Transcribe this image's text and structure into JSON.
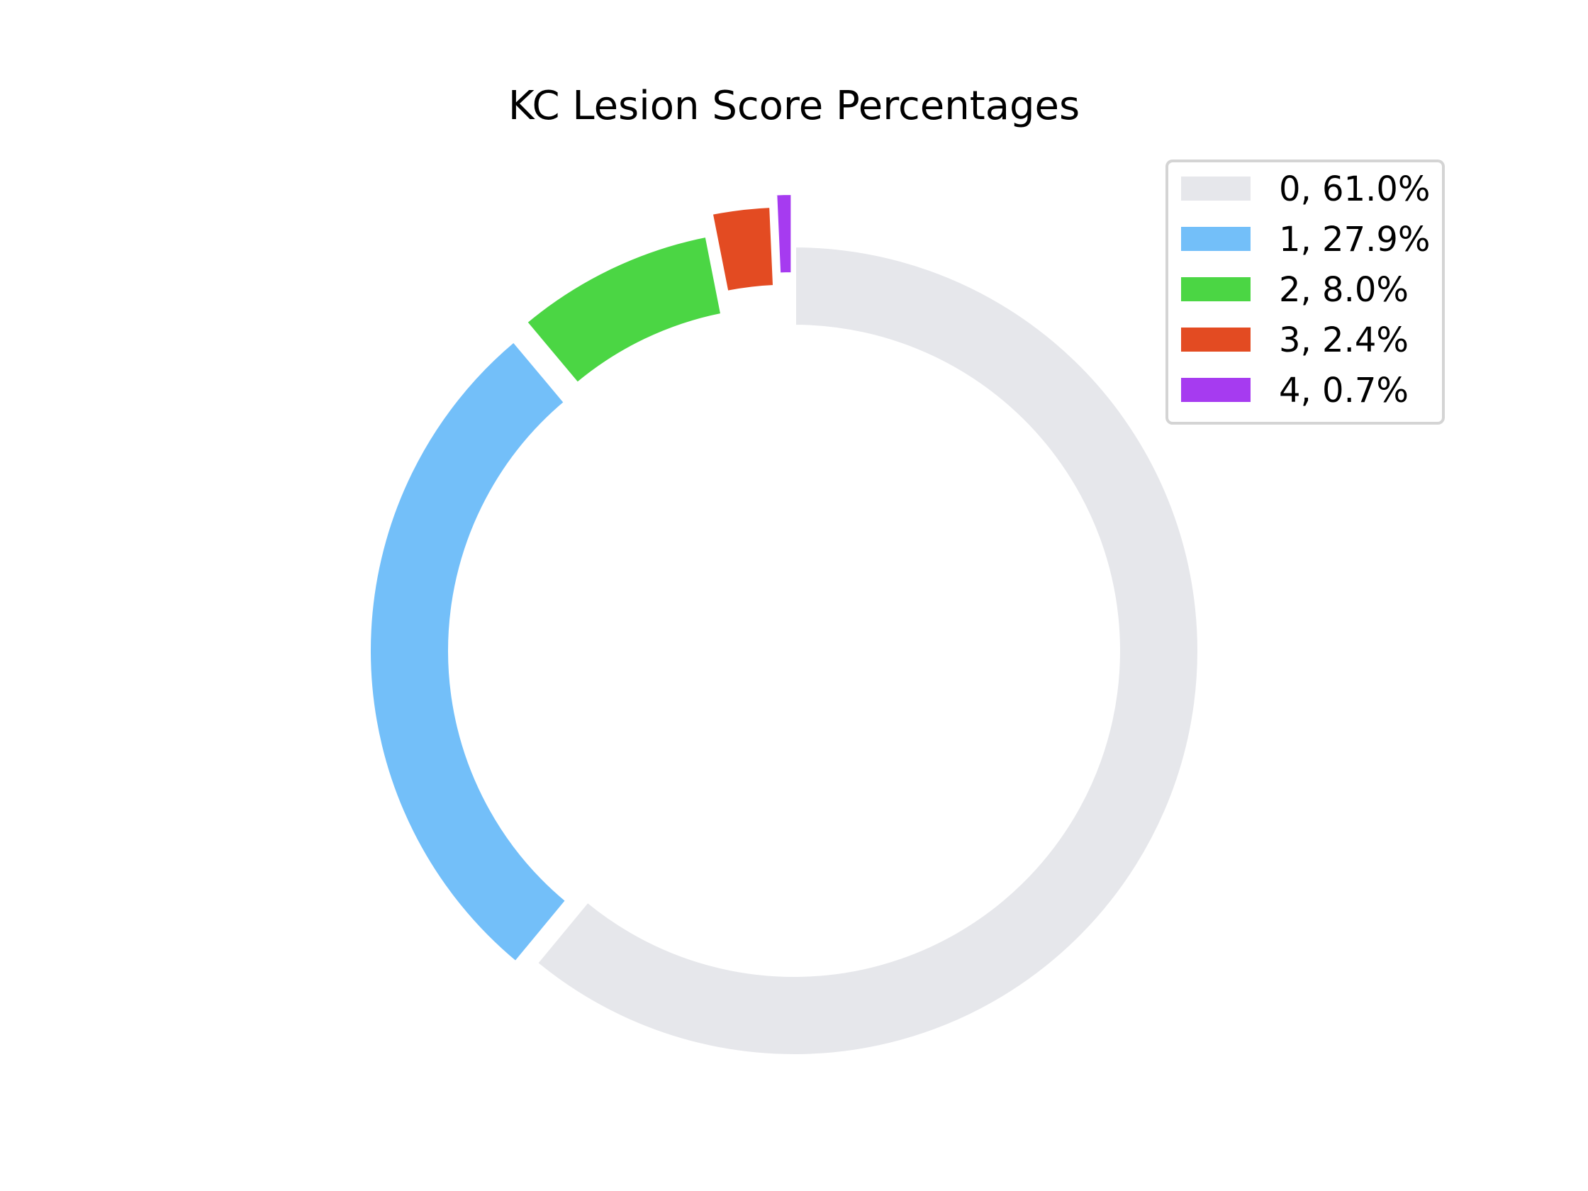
{
  "chart_data": {
    "type": "pie",
    "variant": "donut",
    "title": "KC Lesion Score Percentages",
    "legend": "top-right",
    "start_angle_deg": 90,
    "direction": "clockwise",
    "slices": [
      {
        "label": "0",
        "value": 61.0,
        "legend_text": "0, 61.0%",
        "color": "#e6e7eb"
      },
      {
        "label": "1",
        "value": 27.9,
        "legend_text": "1, 27.9%",
        "color": "#73bff9"
      },
      {
        "label": "2",
        "value": 8.0,
        "legend_text": "2, 8.0%",
        "color": "#4bd644"
      },
      {
        "label": "3",
        "value": 2.4,
        "legend_text": "3, 2.4%",
        "color": "#e34b22"
      },
      {
        "label": "4",
        "value": 0.7,
        "legend_text": "4, 0.7%",
        "color": "#a63bf0"
      }
    ]
  }
}
